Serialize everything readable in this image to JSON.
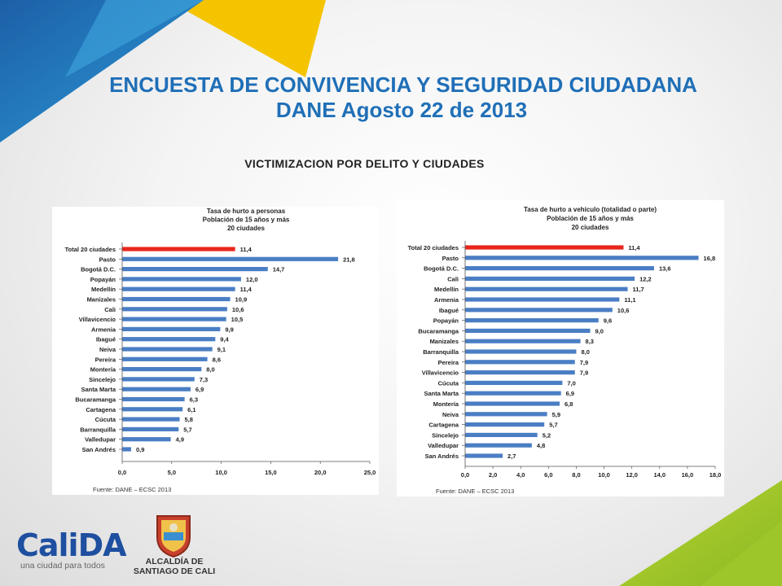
{
  "header": {
    "title_line1": "ENCUESTA DE CONVIVENCIA Y SEGURIDAD CIUDADANA",
    "title_line2": "DANE Agosto 22 de 2013",
    "subtitle": "VICTIMIZACION POR DELITO Y CIUDADES"
  },
  "colors": {
    "total_bar": "#e8271b",
    "city_bar": "#4a7ec4",
    "title": "#1f6fb7"
  },
  "chart_data": [
    {
      "type": "bar",
      "orientation": "horizontal",
      "title_lines": [
        "Tasa de hurto a personas",
        "Población de 15 años y más",
        "20 ciudades"
      ],
      "categories": [
        "Total 20 ciudades",
        "Pasto",
        "Bogotá D.C.",
        "Popayán",
        "Medellín",
        "Manizales",
        "Cali",
        "Villavicencio",
        "Armenia",
        "Ibagué",
        "Neiva",
        "Pereira",
        "Montería",
        "Sincelejo",
        "Santa Marta",
        "Bucaramanga",
        "Cartagena",
        "Cúcuta",
        "Barranquilla",
        "Valledupar",
        "San Andrés"
      ],
      "values": [
        11.4,
        21.8,
        14.7,
        12.0,
        11.4,
        10.9,
        10.6,
        10.5,
        9.9,
        9.4,
        9.1,
        8.6,
        8.0,
        7.3,
        6.9,
        6.3,
        6.1,
        5.8,
        5.7,
        4.9,
        0.9
      ],
      "value_labels": [
        "11,4",
        "21,8",
        "14,7",
        "12,0",
        "11,4",
        "10,9",
        "10,6",
        "10,5",
        "9,9",
        "9,4",
        "9,1",
        "8,6",
        "8,0",
        "7,3",
        "6,9",
        "6,3",
        "6,1",
        "5,8",
        "5,7",
        "4,9",
        "0,9"
      ],
      "xlim": [
        0,
        25
      ],
      "xticks": [
        "0,0",
        "5,0",
        "10,0",
        "15,0",
        "20,0",
        "25,0"
      ],
      "source": "Fuente: DANE – ECSC 2013",
      "grid": false
    },
    {
      "type": "bar",
      "orientation": "horizontal",
      "title_lines": [
        "Tasa de hurto a vehículo (totalidad o parte)",
        "Población de 15 años y más",
        "20 ciudades"
      ],
      "categories": [
        "Total 20 ciudades",
        "Pasto",
        "Bogotá D.C.",
        "Cali",
        "Medellín",
        "Armenia",
        "Ibagué",
        "Popayán",
        "Bucaramanga",
        "Manizales",
        "Barranquilla",
        "Pereira",
        "Villavicencio",
        "Cúcuta",
        "Santa Marta",
        "Montería",
        "Neiva",
        "Cartagena",
        "Sincelejo",
        "Valledupar",
        "San Andrés"
      ],
      "values": [
        11.4,
        16.8,
        13.6,
        12.2,
        11.7,
        11.1,
        10.6,
        9.6,
        9.0,
        8.3,
        8.0,
        7.9,
        7.9,
        7.0,
        6.9,
        6.8,
        5.9,
        5.7,
        5.2,
        4.8,
        2.7
      ],
      "value_labels": [
        "11,4",
        "16,8",
        "13,6",
        "12,2",
        "11,7",
        "11,1",
        "10,6",
        "9,6",
        "9,0",
        "8,3",
        "8,0",
        "7,9",
        "7,9",
        "7,0",
        "6,9",
        "6,8",
        "5,9",
        "5,7",
        "5,2",
        "4,8",
        "2,7"
      ],
      "xlim": [
        0,
        18
      ],
      "xticks": [
        "0,0",
        "2,0",
        "4,0",
        "6,0",
        "8,0",
        "10,0",
        "12,0",
        "14,0",
        "16,0",
        "18,0"
      ],
      "source": "Fuente: DANE – ECSC 2013",
      "grid": false
    }
  ],
  "footer": {
    "logo_text": "CaliDA",
    "logo_tagline": "una ciudad para todos",
    "alcaldia_line1": "ALCALDÍA DE",
    "alcaldia_line2": "SANTIAGO DE CALI"
  }
}
